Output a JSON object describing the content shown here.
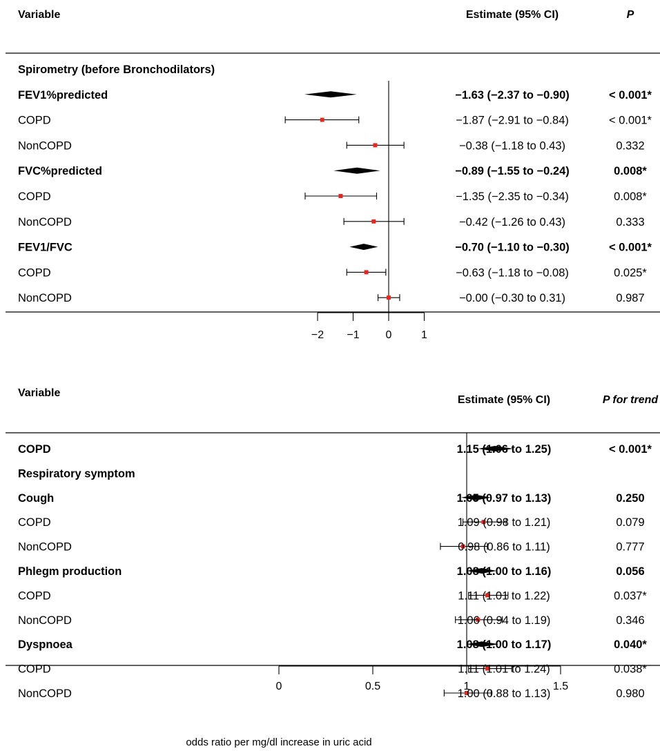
{
  "chart_data": [
    {
      "type": "forest",
      "headers": {
        "variable": "Variable",
        "estimate": "Estimate (95% CI)",
        "p": "P"
      },
      "xticks": [
        -2,
        -1,
        0,
        1
      ],
      "xlabel": "",
      "ref_line": 0,
      "rows": [
        {
          "label": "Spirometry (before Bronchodilators)",
          "section": true
        },
        {
          "label": "FEV1%predicted",
          "bold": true,
          "shape": "diamond",
          "est": -1.63,
          "lo": -2.37,
          "hi": -0.9,
          "text": "−1.63 (−2.37 to −0.90)",
          "p": "< 0.001*"
        },
        {
          "label": "COPD",
          "shape": "point",
          "est": -1.87,
          "lo": -2.91,
          "hi": -0.84,
          "text": "−1.87 (−2.91 to −0.84)",
          "p": "< 0.001*"
        },
        {
          "label": "NonCOPD",
          "shape": "point",
          "est": -0.38,
          "lo": -1.18,
          "hi": 0.43,
          "text": "−0.38 (−1.18 to 0.43)",
          "p": "0.332"
        },
        {
          "label": "FVC%predicted",
          "bold": true,
          "shape": "diamond",
          "est": -0.89,
          "lo": -1.55,
          "hi": -0.24,
          "text": "−0.89 (−1.55 to −0.24)",
          "p": "0.008*"
        },
        {
          "label": "COPD",
          "shape": "point",
          "est": -1.35,
          "lo": -2.35,
          "hi": -0.34,
          "text": "−1.35 (−2.35 to −0.34)",
          "p": "0.008*"
        },
        {
          "label": "NonCOPD",
          "shape": "point",
          "est": -0.42,
          "lo": -1.26,
          "hi": 0.43,
          "text": "−0.42 (−1.26 to 0.43)",
          "p": "0.333"
        },
        {
          "label": "FEV1/FVC",
          "bold": true,
          "shape": "diamond",
          "est": -0.7,
          "lo": -1.1,
          "hi": -0.3,
          "text": "−0.70 (−1.10 to −0.30)",
          "p": "< 0.001*"
        },
        {
          "label": "COPD",
          "shape": "point",
          "est": -0.63,
          "lo": -1.18,
          "hi": -0.08,
          "text": "−0.63 (−1.18 to −0.08)",
          "p": "0.025*"
        },
        {
          "label": "NonCOPD",
          "shape": "point",
          "est": -0.0,
          "lo": -0.3,
          "hi": 0.31,
          "text": "−0.00 (−0.30 to 0.31)",
          "p": "0.987"
        }
      ]
    },
    {
      "type": "forest",
      "headers": {
        "variable": "Variable",
        "estimate": "Estimate (95% CI)",
        "p": "P for trend"
      },
      "xticks": [
        0,
        0.5,
        1,
        1.5
      ],
      "xlabel": "odds ratio per mg/dl increase in uric acid",
      "ref_line": 1,
      "rows": [
        {
          "label": "COPD",
          "bold": true,
          "shape": "diamond",
          "est": 1.15,
          "lo": 1.06,
          "hi": 1.25,
          "text": "1.15 (1.06 to 1.25)",
          "p": "< 0.001*"
        },
        {
          "label": "Respiratory symptom",
          "section": true
        },
        {
          "label": "Cough",
          "bold": true,
          "shape": "diamond",
          "est": 1.05,
          "lo": 0.97,
          "hi": 1.13,
          "text": "1.05 (0.97 to 1.13)",
          "p": "0.250"
        },
        {
          "label": "COPD",
          "shape": "point",
          "est": 1.09,
          "lo": 0.98,
          "hi": 1.21,
          "text": "1.09 (0.98 to 1.21)",
          "p": "0.079"
        },
        {
          "label": "NonCOPD",
          "shape": "point",
          "est": 0.98,
          "lo": 0.86,
          "hi": 1.11,
          "text": "0.98 (0.86 to 1.11)",
          "p": "0.777"
        },
        {
          "label": "Phlegm production",
          "bold": true,
          "shape": "diamond",
          "est": 1.08,
          "lo": 1.0,
          "hi": 1.16,
          "text": "1.08 (1.00 to 1.16)",
          "p": "0.056"
        },
        {
          "label": "COPD",
          "shape": "point",
          "est": 1.11,
          "lo": 1.01,
          "hi": 1.22,
          "text": "1.11 (1.01 to 1.22)",
          "p": "0.037*"
        },
        {
          "label": "NonCOPD",
          "shape": "point",
          "est": 1.06,
          "lo": 0.94,
          "hi": 1.19,
          "text": "1.06 (0.94 to 1.19)",
          "p": "0.346"
        },
        {
          "label": "Dyspnoea",
          "bold": true,
          "shape": "diamond",
          "est": 1.08,
          "lo": 1.0,
          "hi": 1.17,
          "text": "1.08 (1.00 to 1.17)",
          "p": "0.040*"
        },
        {
          "label": "COPD",
          "shape": "point",
          "est": 1.11,
          "lo": 1.01,
          "hi": 1.24,
          "text": "1.11 (1.01 to 1.24)",
          "p": "0.038*"
        },
        {
          "label": "NonCOPD",
          "shape": "point",
          "est": 1.0,
          "lo": 0.88,
          "hi": 1.13,
          "text": "1.00 (0.88 to 1.13)",
          "p": "0.980"
        }
      ]
    }
  ],
  "colors": {
    "point": "#e8261c",
    "ink": "#000000"
  }
}
